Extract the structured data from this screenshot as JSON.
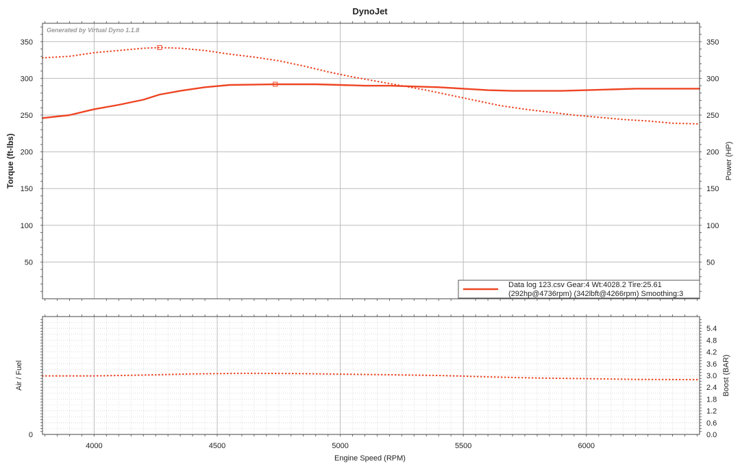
{
  "title": "DynoJet",
  "watermark": "Generated by Virtual Dyno 1.1.8",
  "colors": {
    "series": "#ee4422",
    "grid_major": "#bbbbbb",
    "grid_minor": "#d6d6d6",
    "frame": "#444444"
  },
  "chart_data": [
    {
      "type": "line",
      "title": "DynoJet",
      "xlabel": "Engine Speed (RPM)",
      "ylabel": "Torque (ft-lbs)",
      "ylabel_right": "Power (HP)",
      "xlim": [
        3790,
        6460
      ],
      "ylim": [
        0,
        375
      ],
      "x_ticks": [
        4000,
        4500,
        5000,
        5500,
        6000
      ],
      "y_ticks": [
        50,
        100,
        150,
        200,
        250,
        300,
        350
      ],
      "grid": true,
      "legend": {
        "position": "bottom-right",
        "line1": "Data log 123.csv Gear:4 Wt:4028.2 Tire:25.61",
        "line2": "(292hp@4736rpm) (342lbft@4266rpm) Smoothing:3"
      },
      "series": [
        {
          "name": "Power (HP)",
          "style": "solid",
          "axis": "right",
          "x": [
            3790,
            3900,
            4000,
            4100,
            4200,
            4266,
            4350,
            4450,
            4550,
            4736,
            4900,
            5000,
            5100,
            5200,
            5300,
            5400,
            5500,
            5600,
            5700,
            5800,
            5900,
            6000,
            6100,
            6200,
            6300,
            6400,
            6460
          ],
          "values": [
            246,
            250,
            258,
            264,
            271,
            278,
            283,
            288,
            291,
            292,
            292,
            291,
            290,
            290,
            289,
            288,
            286,
            284,
            283,
            283,
            283,
            284,
            285,
            286,
            286,
            286,
            286
          ]
        },
        {
          "name": "Torque (ft-lbs)",
          "style": "dotted",
          "axis": "left",
          "x": [
            3790,
            3900,
            4000,
            4100,
            4200,
            4266,
            4350,
            4450,
            4550,
            4650,
            4750,
            4850,
            4950,
            5050,
            5150,
            5250,
            5350,
            5450,
            5550,
            5650,
            5750,
            5850,
            5950,
            6050,
            6150,
            6250,
            6350,
            6460
          ],
          "values": [
            328,
            330,
            335,
            338,
            341,
            342,
            341,
            338,
            333,
            329,
            324,
            317,
            309,
            302,
            296,
            290,
            284,
            277,
            270,
            263,
            258,
            254,
            250,
            247,
            244,
            242,
            239,
            238
          ]
        }
      ],
      "markers": [
        {
          "label": "peak-torque",
          "x": 4266,
          "y": 342
        },
        {
          "label": "peak-power",
          "x": 4736,
          "y": 292
        }
      ]
    },
    {
      "type": "line",
      "xlabel": "Engine Speed (RPM)",
      "ylabel": "Air / Fuel",
      "ylabel_right": "Boost (BAR)",
      "xlim": [
        3790,
        6460
      ],
      "ylim_left": [
        0,
        20
      ],
      "left_ticks": [
        0
      ],
      "ylim": [
        0,
        6
      ],
      "y_ticks": [
        0.0,
        0.6,
        1.2,
        1.8,
        2.4,
        3.0,
        3.6,
        4.2,
        4.8,
        5.4
      ],
      "grid": true,
      "series": [
        {
          "name": "Boost (BAR)",
          "style": "dotted",
          "axis": "right",
          "x": [
            3790,
            4000,
            4200,
            4400,
            4600,
            4800,
            5000,
            5200,
            5400,
            5600,
            5800,
            6000,
            6200,
            6460
          ],
          "values": [
            2.98,
            2.98,
            3.02,
            3.08,
            3.11,
            3.1,
            3.07,
            3.04,
            3.0,
            2.93,
            2.87,
            2.84,
            2.8,
            2.79
          ]
        }
      ]
    }
  ]
}
